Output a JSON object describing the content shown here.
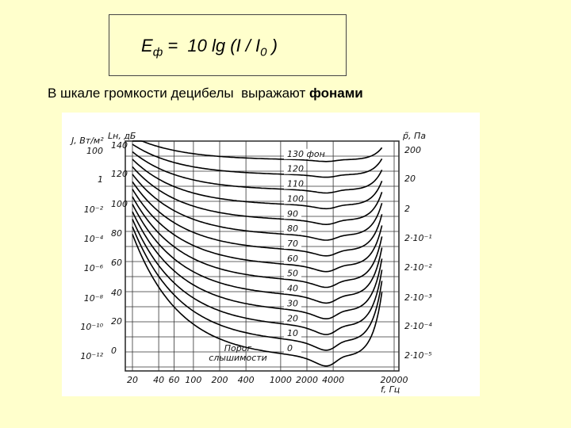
{
  "formula": {
    "lhs": "E",
    "lhs_subscript": "ф",
    "rhs": " =  10 lg (I / I",
    "rhs_subscript": "0",
    "close": " )"
  },
  "caption": {
    "text": "В шкале громкости децибелы  выражают ",
    "bold": "фонами"
  },
  "figure": {
    "intensity_axis_label": "J, Вт/м²",
    "level_axis_label": "Lн, дБ",
    "pressure_axis_label": "p̃, Па",
    "intensity_labels": [
      "100",
      "1",
      "10⁻²",
      "10⁻⁴",
      "10⁻⁶",
      "10⁻⁸",
      "10⁻¹⁰",
      "10⁻¹²"
    ],
    "level_labels": [
      140,
      120,
      100,
      80,
      60,
      40,
      20,
      0
    ],
    "pressure_labels": [
      "200",
      "20",
      "2",
      "2·10⁻¹",
      "2·10⁻²",
      "2·10⁻³",
      "2·10⁻⁴",
      "2·10⁻⁵"
    ],
    "phon_labels": [
      "130 фон",
      120,
      110,
      100,
      90,
      80,
      70,
      60,
      50,
      40,
      30,
      20,
      10,
      0
    ],
    "frequency_labels": [
      20,
      40,
      60,
      100,
      200,
      400,
      1000,
      2000,
      4000,
      20000
    ],
    "frequency_axis_label": "f, Гц",
    "threshold_label": [
      "Порог",
      "слышимости"
    ]
  }
}
